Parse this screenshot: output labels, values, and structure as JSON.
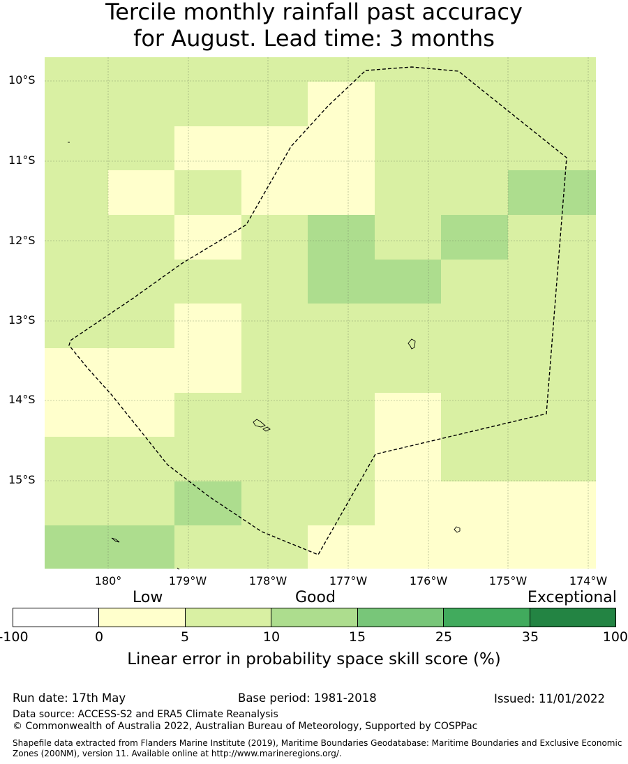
{
  "title_line1": "Tercile monthly rainfall past accuracy",
  "title_line2": "for August. Lead time: 3 months",
  "map": {
    "lat_labels": [
      "10°S",
      "11°S",
      "12°S",
      "13°S",
      "14°S",
      "15°S"
    ],
    "lon_labels": [
      "180°",
      "179°W",
      "178°W",
      "177°W",
      "176°W",
      "175°W",
      "174°W"
    ],
    "skill_grid_categories": [
      [
        2,
        2,
        2,
        2,
        1,
        2,
        2,
        2
      ],
      [
        2,
        2,
        1,
        1,
        1,
        2,
        2,
        2
      ],
      [
        2,
        1,
        2,
        1,
        1,
        2,
        2,
        3
      ],
      [
        2,
        2,
        1,
        2,
        3,
        2,
        3,
        2
      ],
      [
        2,
        2,
        2,
        2,
        3,
        3,
        2,
        2
      ],
      [
        2,
        2,
        1,
        2,
        2,
        2,
        2,
        2
      ],
      [
        1,
        1,
        1,
        2,
        2,
        2,
        2,
        2
      ],
      [
        1,
        1,
        2,
        2,
        2,
        1,
        2,
        2
      ],
      [
        2,
        2,
        2,
        2,
        2,
        1,
        2,
        2
      ],
      [
        2,
        2,
        3,
        2,
        2,
        1,
        1,
        1
      ],
      [
        3,
        3,
        2,
        2,
        1,
        1,
        1,
        1
      ]
    ],
    "colors": [
      "#ffffff",
      "#ffffcc",
      "#d9f0a3",
      "#addd8e",
      "#78c679",
      "#41ab5d",
      "#238443"
    ]
  },
  "colorbar": {
    "top_labels": [
      "Low",
      "Good",
      "Exceptional"
    ],
    "ticks": [
      "-100",
      "0",
      "5",
      "10",
      "15",
      "25",
      "35",
      "100"
    ],
    "label": "Linear error in probability space skill score (%)"
  },
  "footer": {
    "run_date": "Run date: 17th May",
    "base_period": "Base period: 1981-2018",
    "issued": "Issued: 11/01/2022",
    "data_source": "Data source: ACCESS-S2 and ERA5 Climate Reanalysis",
    "copyright": "© Commonwealth of Australia 2022, Australian Bureau of Meteorology, Supported by COSPPac",
    "shapefile": "Shapefile data extracted from Flanders Marine Institute (2019), Maritime Boundaries Geodatabase: Maritime Boundaries and Exclusive Economic Zones (200NM), version 11. Available online at http://www.marineregions.org/."
  }
}
